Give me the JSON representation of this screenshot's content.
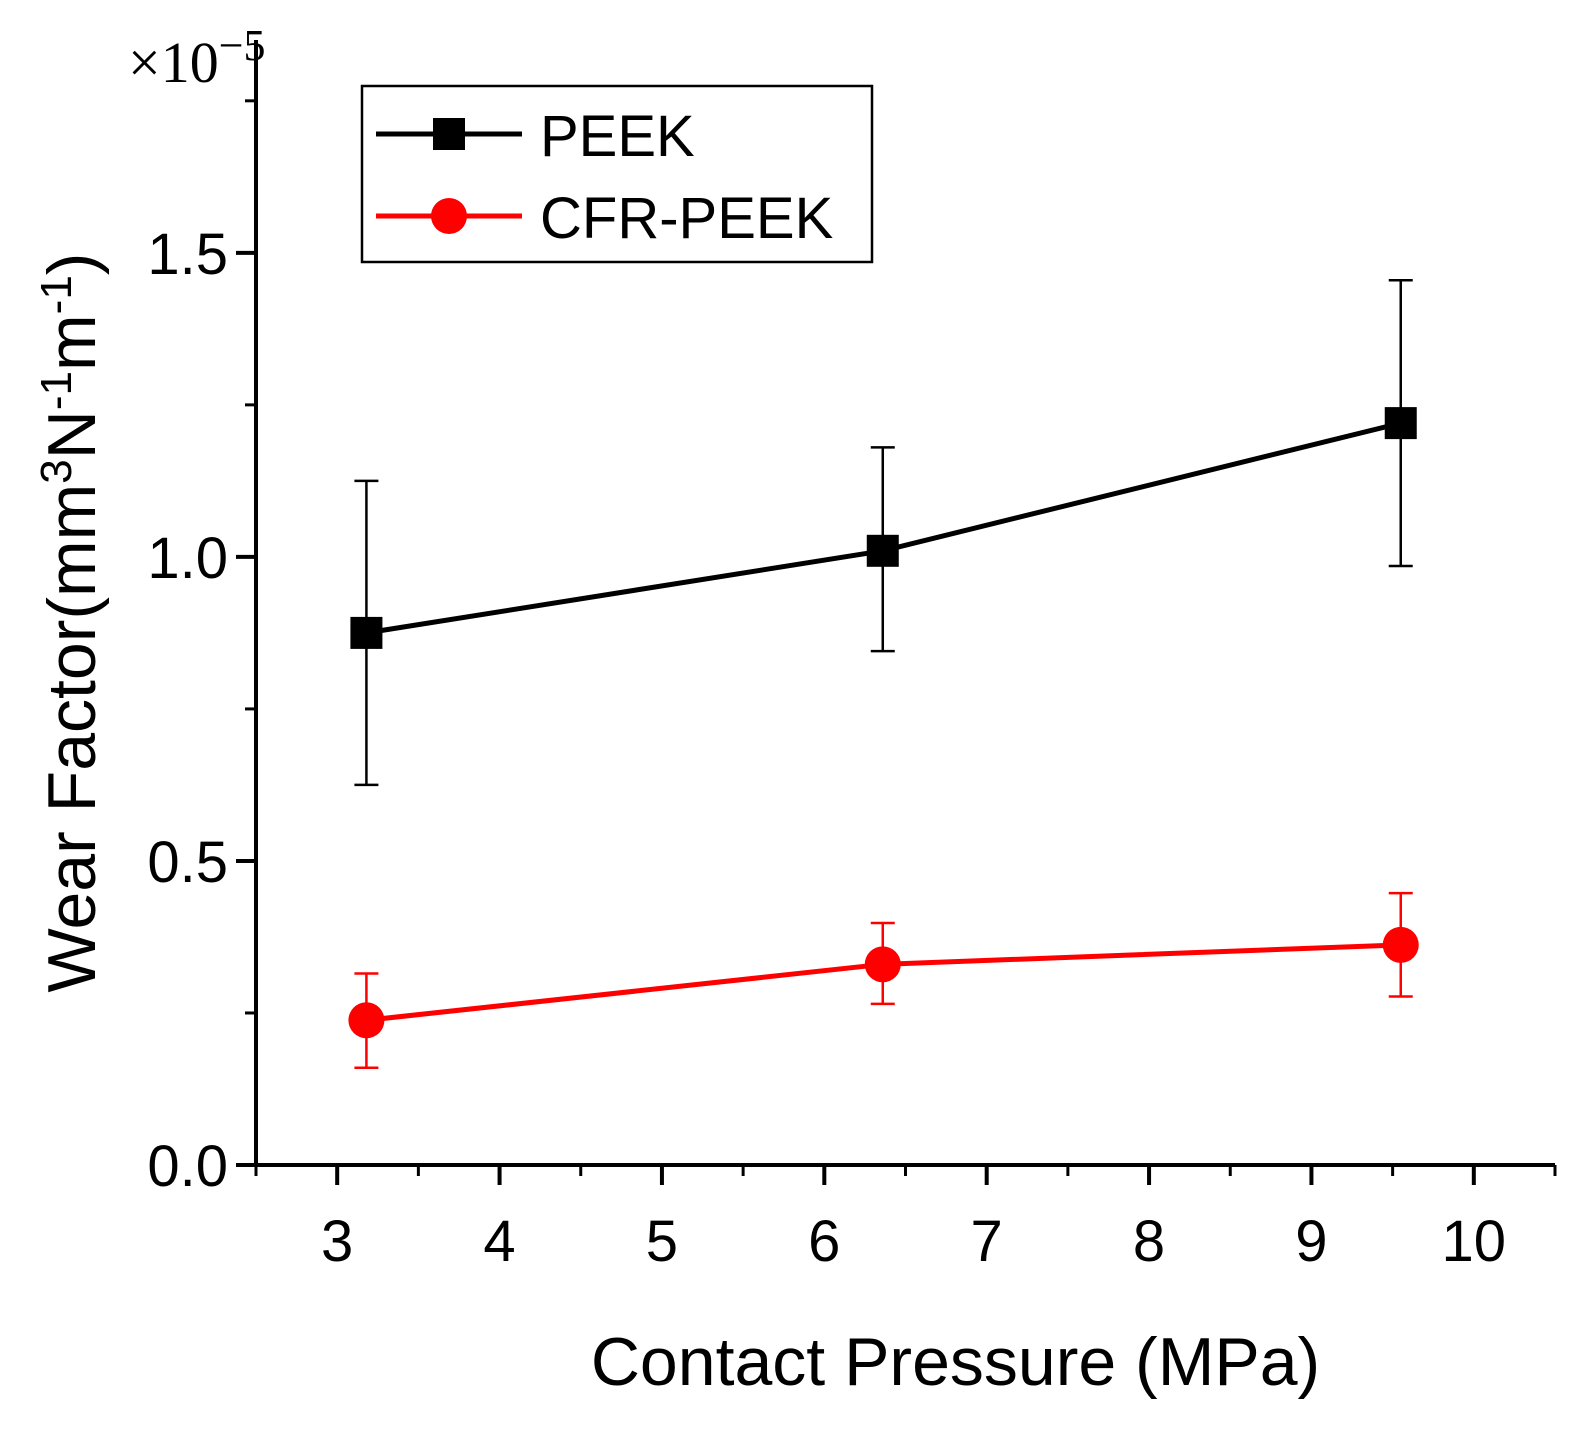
{
  "chart_data": {
    "type": "line",
    "xlabel": "Contact Pressure (MPa)",
    "ylabel": {
      "main": "Wear Factor(mm",
      "sup1": "3",
      "mid1": "N",
      "sup2": "-1",
      "mid2": "m",
      "sup3": "-1",
      "end": ")"
    },
    "y_multiplier": {
      "base": "×10",
      "exponent": "−5"
    },
    "xlim": [
      2.5,
      10.5
    ],
    "ylim": [
      0,
      1.85
    ],
    "x_ticks": [
      3,
      4,
      5,
      6,
      7,
      8,
      9,
      10
    ],
    "x_tick_labels": [
      "3",
      "4",
      "5",
      "6",
      "7",
      "8",
      "9",
      "10"
    ],
    "y_ticks": [
      0.0,
      0.5,
      1.0,
      1.5
    ],
    "y_tick_labels": [
      "0.0",
      "0.5",
      "1.0",
      "1.5"
    ],
    "legend_position": "top-left",
    "grid": false,
    "series": [
      {
        "name": "PEEK",
        "color": "#000000",
        "marker": "square",
        "x": [
          3.18,
          6.36,
          9.55
        ],
        "y": [
          0.875,
          1.01,
          1.22
        ],
        "err_upper": [
          1.125,
          1.18,
          1.455
        ],
        "err_lower": [
          0.625,
          0.845,
          0.985
        ]
      },
      {
        "name": "CFR-PEEK",
        "color": "#ff0000",
        "marker": "circle",
        "x": [
          3.18,
          6.36,
          9.55
        ],
        "y": [
          0.238,
          0.33,
          0.362
        ],
        "err_upper": [
          0.315,
          0.398,
          0.447
        ],
        "err_lower": [
          0.16,
          0.265,
          0.277
        ]
      }
    ]
  }
}
